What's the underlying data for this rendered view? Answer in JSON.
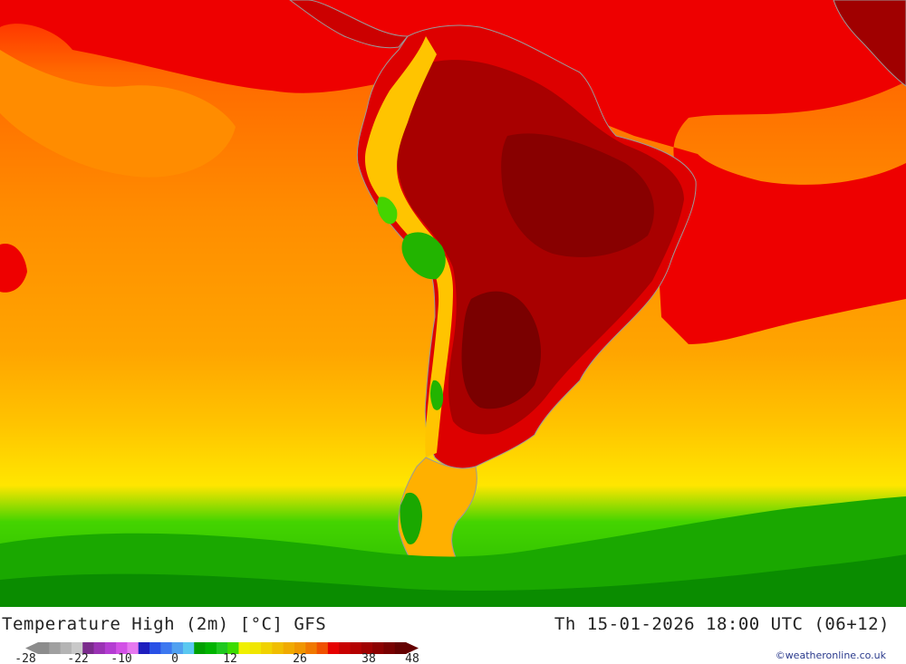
{
  "map": {
    "title": "Temperature High (2m) [°C] GFS",
    "datetime": "Th 15-01-2026 18:00 UTC (06+12)",
    "credit": "©weatheronline.co.uk",
    "region": "South America",
    "colors": {
      "very_hot": "#7a0000",
      "hot": "#b00000",
      "warm_red": "#ee0000",
      "orange": "#ff8c00",
      "light_orange": "#ffa500",
      "yellow_orange": "#ffc400",
      "yellow": "#ffea00",
      "green_light": "#44d400",
      "green": "#22b400",
      "green_dark": "#0a8c00",
      "border": "#9a9a9a"
    }
  },
  "legend": {
    "tick_labels": [
      "-28",
      "-22",
      "-10",
      "0",
      "12",
      "26",
      "38",
      "48"
    ],
    "swatches": [
      "#8c8c8c",
      "#a0a0a0",
      "#b4b4b4",
      "#c8c8c8",
      "#7a2b8c",
      "#9a32b4",
      "#b43cd2",
      "#d250e6",
      "#e678f0",
      "#1e1ebe",
      "#2850e6",
      "#3c78f0",
      "#50a0f0",
      "#5ac8f0",
      "#00a000",
      "#00b400",
      "#1ec81e",
      "#3cdc00",
      "#f0f000",
      "#f0e600",
      "#f0d200",
      "#f0be00",
      "#f0aa00",
      "#f09600",
      "#f07800",
      "#f05000",
      "#e60000",
      "#c80000",
      "#b40000",
      "#a00000",
      "#8c0000",
      "#780000",
      "#640000"
    ]
  }
}
